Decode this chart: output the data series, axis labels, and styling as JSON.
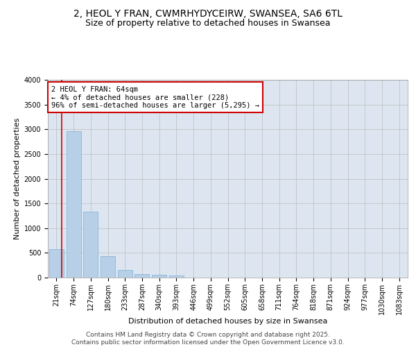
{
  "title_line1": "2, HEOL Y FRAN, CWMRHYDYCEIRW, SWANSEA, SA6 6TL",
  "title_line2": "Size of property relative to detached houses in Swansea",
  "xlabel": "Distribution of detached houses by size in Swansea",
  "ylabel": "Number of detached properties",
  "categories": [
    "21sqm",
    "74sqm",
    "127sqm",
    "180sqm",
    "233sqm",
    "287sqm",
    "340sqm",
    "393sqm",
    "446sqm",
    "499sqm",
    "552sqm",
    "605sqm",
    "658sqm",
    "711sqm",
    "764sqm",
    "818sqm",
    "871sqm",
    "924sqm",
    "977sqm",
    "1030sqm",
    "1083sqm"
  ],
  "values": [
    580,
    2960,
    1330,
    430,
    155,
    75,
    50,
    45,
    0,
    0,
    0,
    0,
    0,
    0,
    0,
    0,
    0,
    0,
    0,
    0,
    0
  ],
  "bar_color": "#b8cfe8",
  "bar_edge_color": "#7aafd4",
  "grid_color": "#bbbbbb",
  "background_color": "#dde6f0",
  "vline_color": "#cc0000",
  "annotation_text": "2 HEOL Y FRAN: 64sqm\n← 4% of detached houses are smaller (228)\n96% of semi-detached houses are larger (5,295) →",
  "annotation_box_color": "#cc0000",
  "ylim": [
    0,
    4000
  ],
  "yticks": [
    0,
    500,
    1000,
    1500,
    2000,
    2500,
    3000,
    3500,
    4000
  ],
  "footer_text": "Contains HM Land Registry data © Crown copyright and database right 2025.\nContains public sector information licensed under the Open Government Licence v3.0.",
  "title_fontsize": 10,
  "subtitle_fontsize": 9,
  "axis_label_fontsize": 8,
  "tick_fontsize": 7,
  "annotation_fontsize": 7.5,
  "footer_fontsize": 6.5
}
